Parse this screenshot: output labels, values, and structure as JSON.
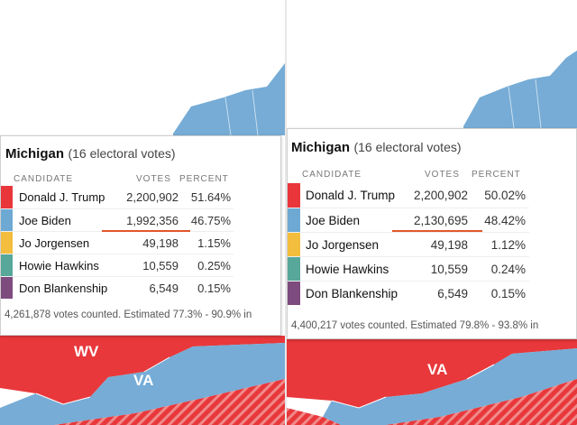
{
  "colors": {
    "republican": "#e8363b",
    "democrat": "#6ea9d4",
    "libertarian": "#f3bd3d",
    "green": "#57a79b",
    "constitution": "#7d4b7e",
    "map_blue": "#76acd6",
    "map_red": "#e8383b",
    "highlight_underline": "#e2572b"
  },
  "left_panel": {
    "state_name": "Michigan",
    "electoral_votes": "(16 electoral votes)",
    "headers": {
      "candidate": "CANDIDATE",
      "votes": "VOTES",
      "percent": "PERCENT"
    },
    "rows": [
      {
        "name": "Donald J. Trump",
        "votes": "2,200,902",
        "percent": "51.64%"
      },
      {
        "name": "Joe Biden",
        "votes": "1,992,356",
        "percent": "46.75%"
      },
      {
        "name": "Jo Jorgensen",
        "votes": "49,198",
        "percent": "1.15%"
      },
      {
        "name": "Howie Hawkins",
        "votes": "10,559",
        "percent": "0.25%"
      },
      {
        "name": "Don Blankenship",
        "votes": "6,549",
        "percent": "0.15%"
      }
    ],
    "footer": "4,261,878 votes counted. Estimated 77.3% - 90.9% in",
    "map_labels": {
      "wv": "WV",
      "va": "VA"
    }
  },
  "right_panel": {
    "state_name": "Michigan",
    "electoral_votes": "(16 electoral votes)",
    "headers": {
      "candidate": "CANDIDATE",
      "votes": "VOTES",
      "percent": "PERCENT"
    },
    "rows": [
      {
        "name": "Donald J. Trump",
        "votes": "2,200,902",
        "percent": "50.02%"
      },
      {
        "name": "Joe Biden",
        "votes": "2,130,695",
        "percent": "48.42%"
      },
      {
        "name": "Jo Jorgensen",
        "votes": "49,198",
        "percent": "1.12%"
      },
      {
        "name": "Howie Hawkins",
        "votes": "10,559",
        "percent": "0.24%"
      },
      {
        "name": "Don Blankenship",
        "votes": "6,549",
        "percent": "0.15%"
      }
    ],
    "footer": "4,400,217 votes counted. Estimated 79.8% - 93.8% in",
    "map_labels": {
      "va": "VA"
    }
  }
}
